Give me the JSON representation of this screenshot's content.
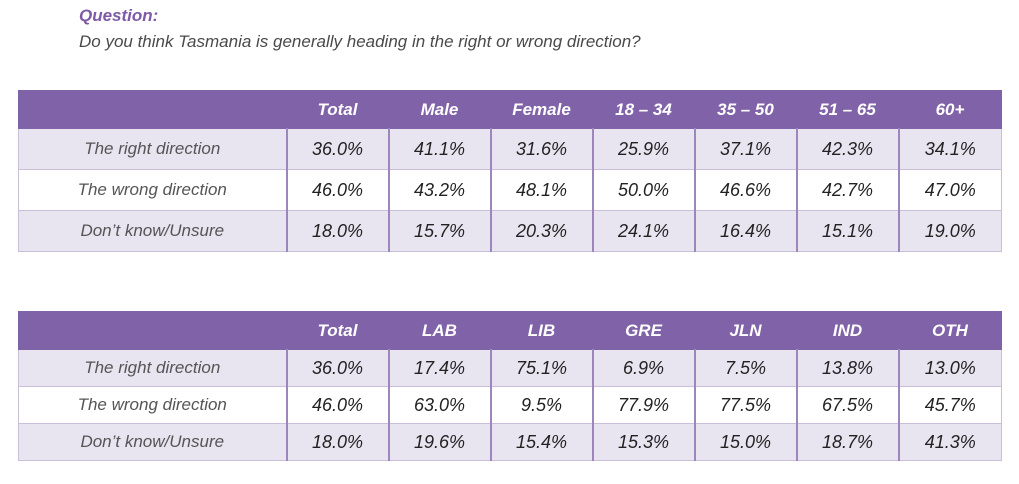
{
  "question": {
    "label": "Question:",
    "text": "Do you think Tasmania is generally heading in the right or wrong direction?"
  },
  "table1": {
    "headers": [
      "",
      "Total",
      "Male",
      "Female",
      "18 – 34",
      "35 – 50",
      "51 – 65",
      "60+"
    ],
    "rows": [
      {
        "label": "The right direction",
        "values": [
          "36.0%",
          "41.1%",
          "31.6%",
          "25.9%",
          "37.1%",
          "42.3%",
          "34.1%"
        ]
      },
      {
        "label": "The wrong direction",
        "values": [
          "46.0%",
          "43.2%",
          "48.1%",
          "50.0%",
          "46.6%",
          "42.7%",
          "47.0%"
        ]
      },
      {
        "label": "Don’t know/Unsure",
        "values": [
          "18.0%",
          "15.7%",
          "20.3%",
          "24.1%",
          "16.4%",
          "15.1%",
          "19.0%"
        ]
      }
    ]
  },
  "table2": {
    "headers": [
      "",
      "Total",
      "LAB",
      "LIB",
      "GRE",
      "JLN",
      "IND",
      "OTH"
    ],
    "rows": [
      {
        "label": "The right direction",
        "values": [
          "36.0%",
          "17.4%",
          "75.1%",
          "6.9%",
          "7.5%",
          "13.8%",
          "13.0%"
        ]
      },
      {
        "label": "The wrong direction",
        "values": [
          "46.0%",
          "63.0%",
          "9.5%",
          "77.9%",
          "77.5%",
          "67.5%",
          "45.7%"
        ]
      },
      {
        "label": "Don’t know/Unsure",
        "values": [
          "18.0%",
          "19.6%",
          "15.4%",
          "15.3%",
          "15.0%",
          "18.7%",
          "41.3%"
        ]
      }
    ]
  },
  "colors": {
    "header_bg": "#8062a8",
    "question_label": "#7e5aa6",
    "row_shade": "#e8e4f0"
  }
}
